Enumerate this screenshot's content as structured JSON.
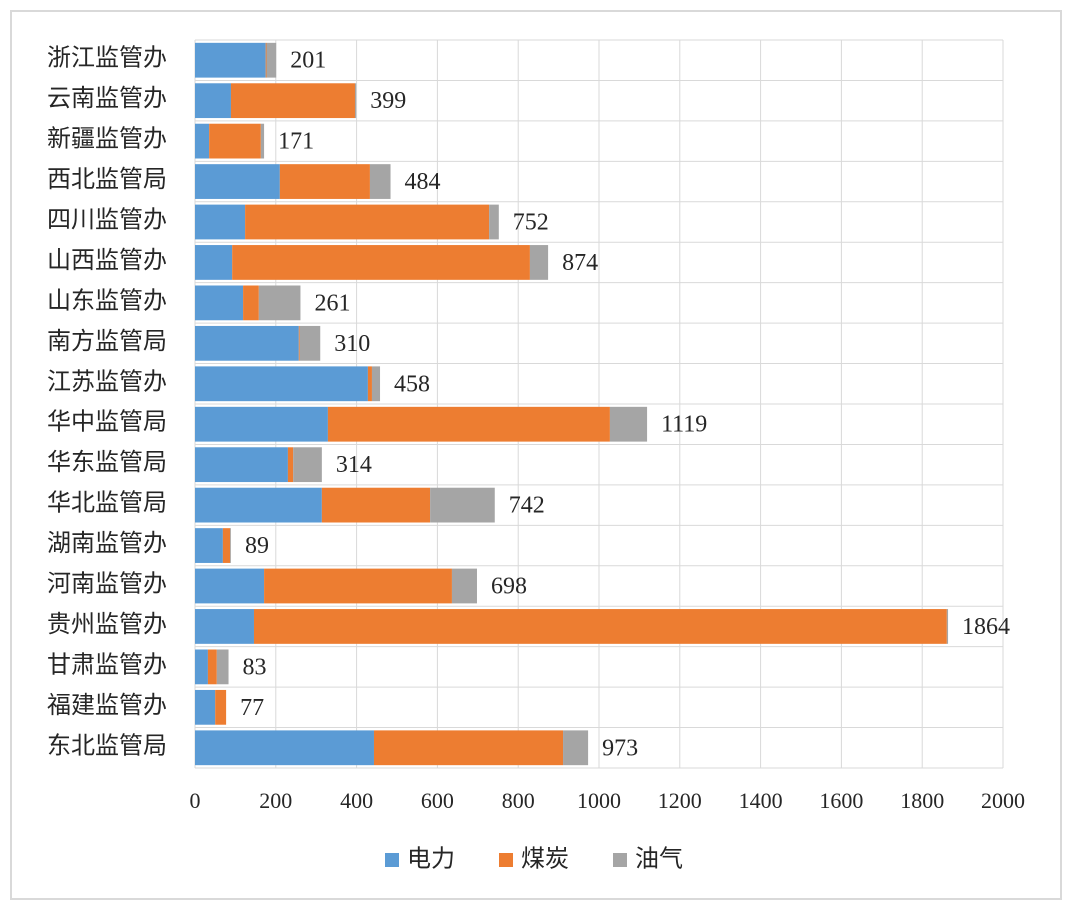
{
  "chart_data": {
    "type": "stacked-bar-horizontal",
    "categories": [
      "浙江监管办",
      "云南监管办",
      "新疆监管办",
      "西北监管局",
      "四川监管办",
      "山西监管办",
      "山东监管办",
      "南方监管局",
      "江苏监管办",
      "华中监管局",
      "华东监管局",
      "华北监管局",
      "湖南监管办",
      "河南监管办",
      "贵州监管办",
      "甘肃监管办",
      "福建监管办",
      "东北监管局"
    ],
    "series": [
      {
        "name": "电力",
        "color": "#5b9bd5",
        "values": [
          175,
          89,
          35,
          210,
          124,
          92,
          119,
          257,
          428,
          329,
          230,
          314,
          69,
          171,
          146,
          32,
          50,
          443
        ]
      },
      {
        "name": "煤炭",
        "color": "#ed7d31",
        "values": [
          2,
          307,
          128,
          223,
          604,
          737,
          39,
          2,
          10,
          698,
          13,
          268,
          18,
          465,
          1715,
          22,
          27,
          468
        ]
      },
      {
        "name": "油气",
        "color": "#a5a5a5",
        "values": [
          24,
          3,
          8,
          51,
          24,
          45,
          103,
          51,
          20,
          92,
          71,
          160,
          2,
          62,
          3,
          29,
          0,
          62
        ]
      }
    ],
    "totals": [
      201,
      399,
      171,
      484,
      752,
      874,
      261,
      310,
      458,
      1119,
      314,
      742,
      89,
      698,
      1864,
      83,
      77,
      973
    ],
    "xlim": [
      0,
      2000
    ],
    "xticks": [
      0,
      200,
      400,
      600,
      800,
      1000,
      1200,
      1400,
      1600,
      1800,
      2000
    ],
    "grid": true,
    "legend": "bottom"
  }
}
